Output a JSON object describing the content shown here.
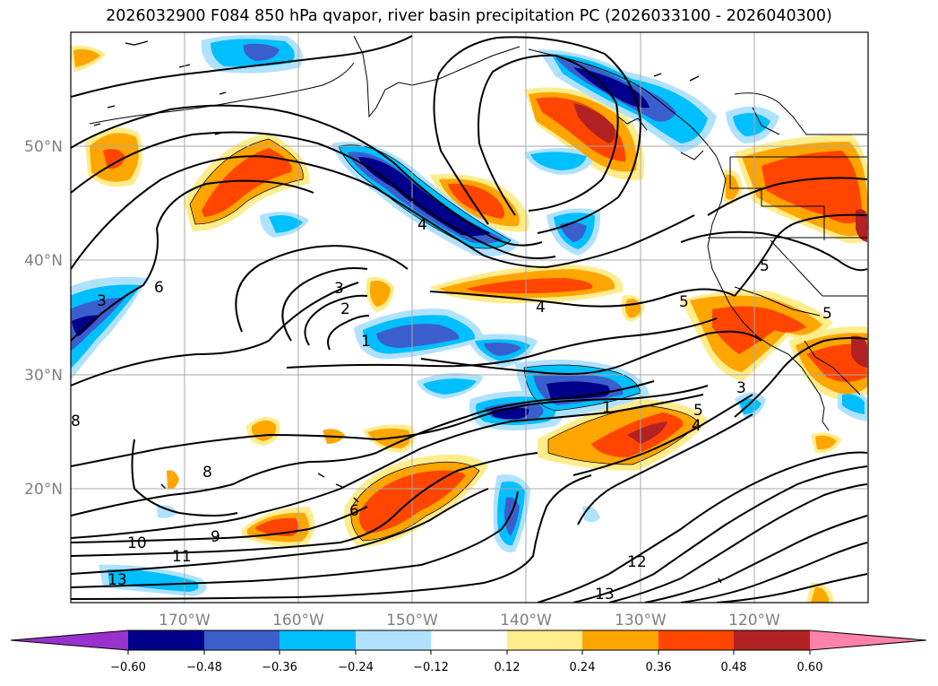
{
  "title": "2026032900 F084 850 hPa qvapor, river basin precipitation PC (2026033100 - 2026040300)",
  "colors": {
    "neg_060": "#9932cc",
    "neg_048": "#00008b",
    "neg_036": "#3a5fcd",
    "neg_024": "#00bfff",
    "neg_012": "#b0e2ff",
    "neutral": "#ffffff",
    "pos_012": "#ffec8b",
    "pos_024": "#ffa500",
    "pos_036": "#ff4500",
    "pos_048": "#b22222",
    "pos_060": "#ff82ab",
    "grid": "#a9a9a9",
    "axis_labels": "#808080"
  },
  "map": {
    "lat_labels": [
      "50°N",
      "40°N",
      "30°N",
      "20°N"
    ],
    "lon_labels": [
      "170°W",
      "160°W",
      "150°W",
      "140°W",
      "130°W",
      "120°W"
    ]
  },
  "contour_labels": [
    "3",
    "6",
    "3",
    "2",
    "1",
    "4",
    "4",
    "5",
    "5",
    "5",
    "3",
    "5",
    "4",
    "1",
    "6",
    "8",
    "8",
    "9",
    "10",
    "11",
    "12",
    "13",
    "13"
  ],
  "colorbar": {
    "ticks": [
      "−0.60",
      "−0.48",
      "−0.36",
      "−0.24",
      "−0.12",
      "0.12",
      "0.24",
      "0.36",
      "0.48",
      "0.60"
    ]
  }
}
